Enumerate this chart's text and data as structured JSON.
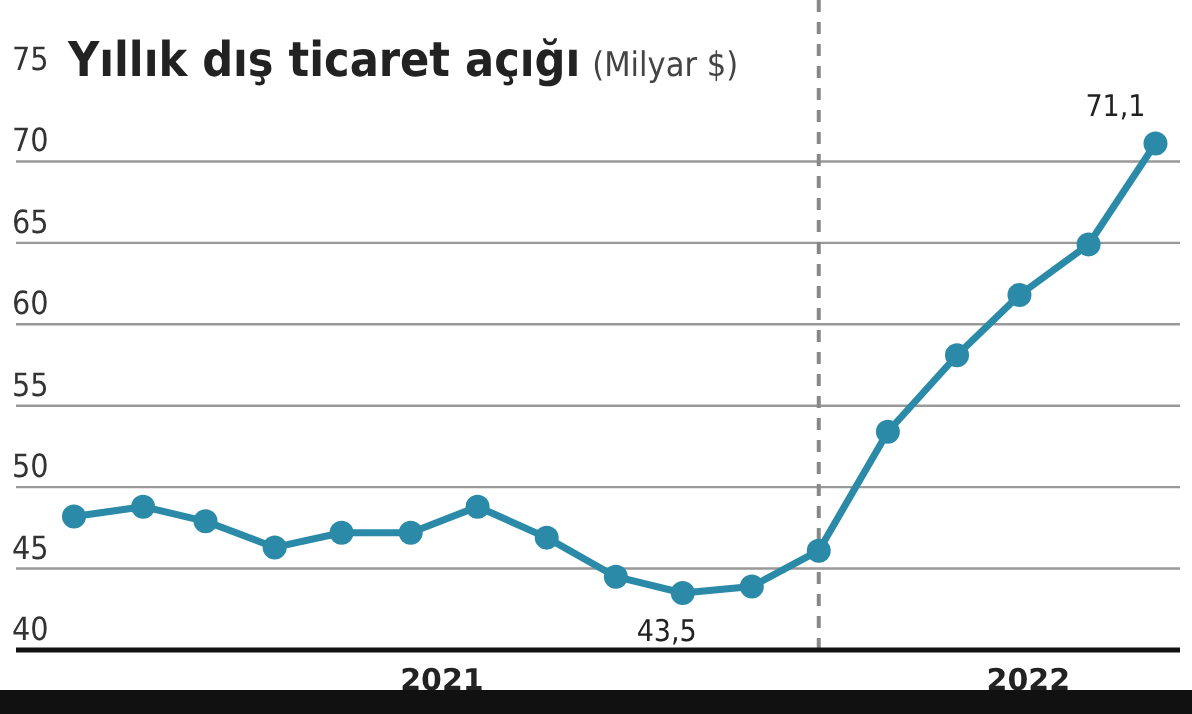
{
  "chart_data": {
    "type": "line",
    "title": "Yıllık dış ticaret açığı",
    "subtitle": "(Milyar $)",
    "x": [
      "2021-01",
      "2021-02",
      "2021-03",
      "2021-04",
      "2021-05",
      "2021-06",
      "2021-07",
      "2021-08",
      "2021-09",
      "2021-10",
      "2021-11",
      "2021-12",
      "2022-01",
      "2022-02",
      "2022-03",
      "2022-04",
      "2022-05"
    ],
    "series": [
      {
        "color": "#2a8aa8",
        "values": [
          48.2,
          48.8,
          47.9,
          46.3,
          47.2,
          47.2,
          48.8,
          46.9,
          44.5,
          43.5,
          43.9,
          46.1,
          53.4,
          58.1,
          61.8,
          64.9,
          71.1
        ],
        "value_labels": [
          null,
          null,
          null,
          null,
          null,
          null,
          null,
          null,
          null,
          "43,5",
          null,
          null,
          null,
          null,
          null,
          null,
          "71,1"
        ]
      }
    ],
    "xlim": [
      "2020-12-06",
      "2022-05-12"
    ],
    "xticks": [
      {
        "value": "2021-06-15",
        "label": "2021"
      },
      {
        "value": "2022-03-05",
        "label": "2022"
      }
    ],
    "ylim": [
      40,
      75
    ],
    "yticks": [
      40,
      45,
      50,
      55,
      60,
      65,
      70,
      75
    ],
    "grid": "y",
    "marker": "circle",
    "line_style": "solid",
    "ref_lines": [
      {
        "axis": "x",
        "value": "2021-12",
        "color": "#888888",
        "line_style": "dashed"
      }
    ]
  }
}
